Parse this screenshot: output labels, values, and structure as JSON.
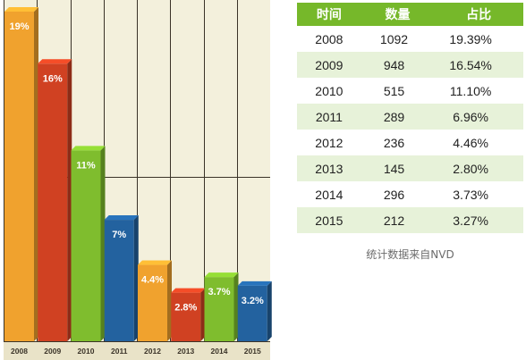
{
  "chart_data": {
    "type": "bar",
    "categories": [
      "2008",
      "2009",
      "2010",
      "2011",
      "2012",
      "2013",
      "2014",
      "2015"
    ],
    "values": [
      19,
      16,
      11,
      7,
      4.4,
      2.8,
      3.7,
      3.2
    ],
    "data_labels": [
      "19%",
      "16%",
      "11%",
      "7%",
      "4.4%",
      "2.8%",
      "3.7%",
      "3.2%"
    ],
    "ylim": [
      0,
      19
    ],
    "colors": [
      "#f0a22e",
      "#d04122",
      "#7fbd2e",
      "#23629f",
      "#f0a22e",
      "#d04122",
      "#7fbd2e",
      "#23629f"
    ],
    "background": "#f3f0dc",
    "grid": true
  },
  "table": {
    "headers": [
      "时间",
      "数量",
      "占比"
    ],
    "rows": [
      [
        "2008",
        "1092",
        "19.39%"
      ],
      [
        "2009",
        "948",
        "16.54%"
      ],
      [
        "2010",
        "515",
        "11.10%"
      ],
      [
        "2011",
        "289",
        "6.96%"
      ],
      [
        "2012",
        "236",
        "4.46%"
      ],
      [
        "2013",
        "145",
        "2.80%"
      ],
      [
        "2014",
        "296",
        "3.73%"
      ],
      [
        "2015",
        "212",
        "3.27%"
      ]
    ],
    "header_color": "#76b82a",
    "stripe_color": "#e7f2d9"
  },
  "source_note": "统计数据来自NVD"
}
